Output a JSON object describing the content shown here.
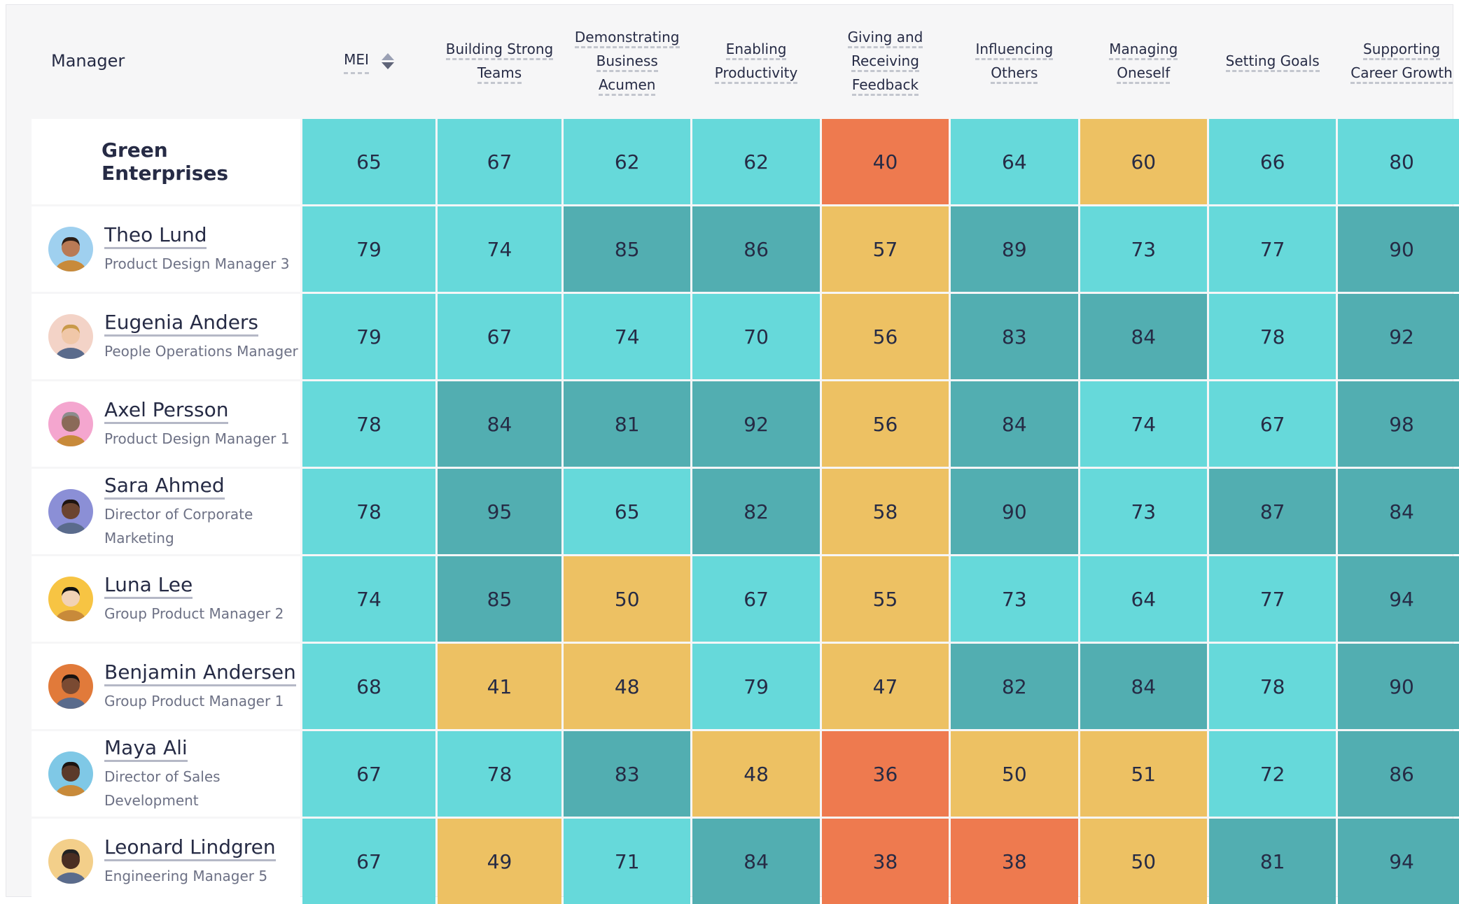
{
  "colors": {
    "teal": "#66d9da",
    "dark_teal": "#52aeb1",
    "yellow": "#edc163",
    "orange": "#ee7a4f"
  },
  "header": {
    "manager": "Manager",
    "mei": "MEI",
    "columns": [
      [
        "Building Strong",
        "Teams"
      ],
      [
        "Demonstrating",
        "Business",
        "Acumen"
      ],
      [
        "Enabling",
        "Productivity"
      ],
      [
        "Giving and",
        "Receiving",
        "Feedback"
      ],
      [
        "Influencing",
        "Others"
      ],
      [
        "Managing",
        "Oneself"
      ],
      [
        "Setting Goals"
      ],
      [
        "Supporting",
        "Career Growth"
      ]
    ]
  },
  "org": {
    "name": "Green Enterprises",
    "values": [
      65,
      67,
      62,
      62,
      40,
      64,
      60,
      66,
      80
    ],
    "levels": [
      "teal",
      "teal",
      "teal",
      "teal",
      "ora",
      "teal",
      "yel",
      "teal",
      "teal"
    ]
  },
  "rows": [
    {
      "name": "Theo Lund",
      "title": "Product Design Manager 3",
      "avatar": "person-avatar-icon",
      "values": [
        79,
        74,
        85,
        86,
        57,
        89,
        73,
        77,
        90
      ],
      "levels": [
        "teal",
        "teal",
        "dteal",
        "dteal",
        "yel",
        "dteal",
        "teal",
        "teal",
        "dteal"
      ]
    },
    {
      "name": "Eugenia Anders",
      "title": "People Operations Manager",
      "avatar": "person-avatar-icon",
      "values": [
        79,
        67,
        74,
        70,
        56,
        83,
        84,
        78,
        92
      ],
      "levels": [
        "teal",
        "teal",
        "teal",
        "teal",
        "yel",
        "dteal",
        "dteal",
        "teal",
        "dteal"
      ]
    },
    {
      "name": "Axel Persson",
      "title": "Product Design Manager 1",
      "avatar": "person-avatar-icon",
      "values": [
        78,
        84,
        81,
        92,
        56,
        84,
        74,
        67,
        98
      ],
      "levels": [
        "teal",
        "dteal",
        "dteal",
        "dteal",
        "yel",
        "dteal",
        "teal",
        "teal",
        "dteal"
      ]
    },
    {
      "name": "Sara Ahmed",
      "title": "Director of Corporate Marketing",
      "avatar": "person-avatar-icon",
      "values": [
        78,
        95,
        65,
        82,
        58,
        90,
        73,
        87,
        84
      ],
      "levels": [
        "teal",
        "dteal",
        "teal",
        "dteal",
        "yel",
        "dteal",
        "teal",
        "dteal",
        "dteal"
      ]
    },
    {
      "name": "Luna Lee",
      "title": "Group Product Manager 2",
      "avatar": "person-avatar-icon",
      "values": [
        74,
        85,
        50,
        67,
        55,
        73,
        64,
        77,
        94
      ],
      "levels": [
        "teal",
        "dteal",
        "yel",
        "teal",
        "yel",
        "teal",
        "teal",
        "teal",
        "dteal"
      ]
    },
    {
      "name": "Benjamin Andersen",
      "title": "Group Product Manager 1",
      "avatar": "person-avatar-icon",
      "values": [
        68,
        41,
        48,
        79,
        47,
        82,
        84,
        78,
        90
      ],
      "levels": [
        "teal",
        "yel",
        "yel",
        "teal",
        "yel",
        "dteal",
        "dteal",
        "teal",
        "dteal"
      ]
    },
    {
      "name": "Maya Ali",
      "title": "Director of Sales Development",
      "avatar": "person-avatar-icon",
      "values": [
        67,
        78,
        83,
        48,
        36,
        50,
        51,
        72,
        86
      ],
      "levels": [
        "teal",
        "teal",
        "dteal",
        "yel",
        "ora",
        "yel",
        "yel",
        "teal",
        "dteal"
      ]
    },
    {
      "name": "Leonard Lindgren",
      "title": "Engineering Manager 5",
      "avatar": "person-avatar-icon",
      "values": [
        67,
        49,
        71,
        84,
        38,
        38,
        50,
        81,
        94
      ],
      "levels": [
        "teal",
        "yel",
        "teal",
        "dteal",
        "ora",
        "ora",
        "yel",
        "dteal",
        "dteal"
      ]
    }
  ]
}
